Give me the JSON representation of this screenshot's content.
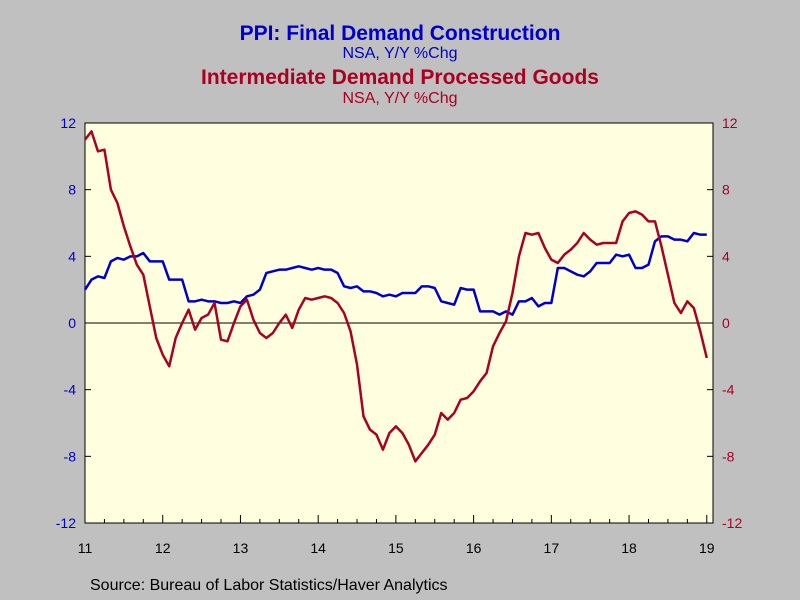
{
  "chart_data": {
    "type": "line",
    "titles": [
      {
        "text": "PPI: Final Demand Construction",
        "color": "#0000cc"
      },
      {
        "text": "NSA, Y/Y %Chg",
        "color": "#0000cc"
      },
      {
        "text": "Intermediate Demand Processed Goods",
        "color": "#aa0022"
      },
      {
        "text": "NSA, Y/Y %Chg",
        "color": "#aa0022"
      }
    ],
    "source": "Source:  Bureau of Labor Statistics/Haver Analytics",
    "x_start": 2011.0,
    "x_end": 2019.08,
    "x_tick_labels": [
      {
        "label": "11",
        "x": 2011
      },
      {
        "label": "12",
        "x": 2012
      },
      {
        "label": "13",
        "x": 2013
      },
      {
        "label": "14",
        "x": 2014
      },
      {
        "label": "15",
        "x": 2015
      },
      {
        "label": "16",
        "x": 2016
      },
      {
        "label": "17",
        "x": 2017
      },
      {
        "label": "18",
        "x": 2018
      },
      {
        "label": "19",
        "x": 2019
      }
    ],
    "y_left": {
      "ylim": [
        -12,
        12
      ],
      "ticks": [
        "12",
        "8",
        "4",
        "0",
        "-4",
        "-8",
        "-12"
      ],
      "color": "#0000cc"
    },
    "y_right": {
      "ylim": [
        -12,
        12
      ],
      "ticks": [
        "12",
        "8",
        "4",
        "0",
        "-4",
        "-8",
        "-12"
      ],
      "color": "#aa0022"
    },
    "zero_line": true,
    "grid": false,
    "series": [
      {
        "color": "#0000cc",
        "axis": "left",
        "values": [
          2.0,
          2.6,
          2.8,
          2.7,
          3.7,
          3.9,
          3.8,
          4.0,
          4.0,
          4.2,
          3.7,
          3.7,
          3.7,
          2.6,
          2.6,
          2.6,
          1.3,
          1.3,
          1.4,
          1.3,
          1.3,
          1.2,
          1.2,
          1.3,
          1.2,
          1.6,
          1.7,
          2.0,
          3.0,
          3.1,
          3.2,
          3.2,
          3.3,
          3.4,
          3.3,
          3.2,
          3.3,
          3.2,
          3.2,
          3.0,
          2.2,
          2.1,
          2.2,
          1.9,
          1.9,
          1.8,
          1.6,
          1.7,
          1.6,
          1.8,
          1.8,
          1.8,
          2.2,
          2.2,
          2.1,
          1.3,
          1.2,
          1.1,
          2.1,
          2.0,
          2.0,
          0.7,
          0.7,
          0.7,
          0.5,
          0.7,
          0.5,
          1.3,
          1.3,
          1.5,
          1.0,
          1.2,
          1.2,
          3.3,
          3.3,
          3.1,
          2.9,
          2.8,
          3.1,
          3.6,
          3.6,
          3.6,
          4.1,
          4.0,
          4.1,
          3.3,
          3.3,
          3.5,
          4.9,
          5.2,
          5.2,
          5.0,
          5.0,
          4.9,
          5.4,
          5.3,
          5.3
        ]
      },
      {
        "color": "#aa0022",
        "axis": "right",
        "values": [
          11.0,
          11.5,
          10.3,
          10.4,
          8.0,
          7.2,
          5.8,
          4.6,
          3.5,
          2.9,
          1.0,
          -0.9,
          -1.9,
          -2.6,
          -0.9,
          0.0,
          0.8,
          -0.4,
          0.3,
          0.5,
          1.2,
          -1.0,
          -1.1,
          0.0,
          1.0,
          1.4,
          0.2,
          -0.6,
          -0.9,
          -0.6,
          0.0,
          0.5,
          -0.3,
          0.8,
          1.5,
          1.4,
          1.5,
          1.6,
          1.5,
          1.2,
          0.6,
          -0.5,
          -2.5,
          -5.6,
          -6.4,
          -6.7,
          -7.6,
          -6.6,
          -6.2,
          -6.6,
          -7.3,
          -8.3,
          -7.8,
          -7.3,
          -6.7,
          -5.4,
          -5.8,
          -5.4,
          -4.6,
          -4.5,
          -4.1,
          -3.5,
          -3.0,
          -1.4,
          -0.6,
          0.1,
          1.8,
          4.0,
          5.4,
          5.3,
          5.4,
          4.5,
          3.8,
          3.6,
          4.1,
          4.4,
          4.8,
          5.4,
          5.0,
          4.7,
          4.8,
          4.8,
          4.8,
          6.1,
          6.6,
          6.7,
          6.5,
          6.1,
          6.1,
          4.6,
          2.9,
          1.2,
          0.6,
          1.3,
          0.9,
          -0.5,
          -2.1
        ]
      }
    ]
  }
}
